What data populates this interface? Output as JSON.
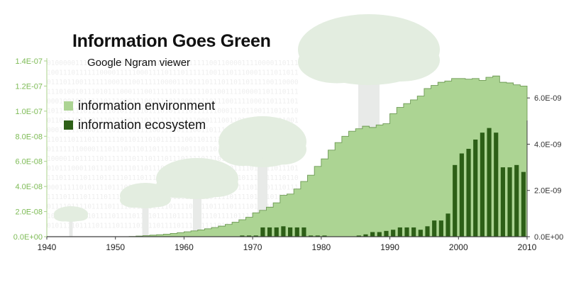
{
  "title": "Information Goes Green",
  "subtitle": "Google Ngram viewer",
  "colors": {
    "environment": "#acd493",
    "ecosystem": "#2d5f17",
    "left_axis_text": "#7dbb55",
    "tree_fill": "#e3ede0",
    "trunk_fill": "#e8eae8",
    "binary_text": "#eeeeee"
  },
  "background_text": {
    "binary_rows": [
      "01000001111100001101101100011101110111110011000011110000110111",
      "10011101111110000111110001111011101111110011101110001111011011",
      "01110110011111100011100111110000111011101110110110111100110000",
      "11101001011101011100011100111110111111101100111100001101110111",
      "00010010011111011100011100111101100011110111001111000110111101",
      "10111011101111110101111101110101111011111100011101100111010110",
      "01101110111011101110011101111111111110001110011011111101101001",
      "00011111000011110111101111001111011100110111011110000011110100",
      "11011101110111111101101110101111110011011110111110111011110111",
      "01111111000011101110111011011111100111011010011111100101110110",
      "10000110111110111111101110111011101111011101111110111001111011",
      "01011100011011101111101101110101111011101111101111011111011101",
      "11101111101110111110111011111011101111011101111101110111110110",
      "00011111010111101110111110111101111011101111011111011101110111",
      "11110111101111011111011110111101111011110111101111011110111101",
      "01111011110111101111011110111101111011110111101111011110111101",
      "10111101111011110111101111011110111101111011110111101111011110",
      "01011110111101111011110111101111011110111101111011110111101111"
    ]
  },
  "legend": [
    {
      "label": "information environment",
      "color": "#acd493"
    },
    {
      "label": "information ecosystem",
      "color": "#2d5f17"
    }
  ],
  "chart_data": {
    "type": "area",
    "title": "Information Goes Green",
    "subtitle": "Google Ngram viewer",
    "grid": false,
    "legend_position": "upper-left",
    "x": {
      "range": [
        1940,
        2010
      ],
      "ticks": [
        "1940",
        "1950",
        "1960",
        "1970",
        "1980",
        "1990",
        "2000",
        "2010"
      ],
      "tick_values": [
        1940,
        1950,
        1960,
        1970,
        1980,
        1990,
        2000,
        2010
      ]
    },
    "y_left": {
      "range": [
        0,
        1.4e-07
      ],
      "ticks": [
        "0.0E+00",
        "2.0E-08",
        "4.0E-08",
        "6.0E-08",
        "8.0E-08",
        "1.0E-07",
        "1.2E-07",
        "1.4E-07"
      ],
      "tick_values": [
        0,
        2e-08,
        4e-08,
        6e-08,
        8e-08,
        1e-07,
        1.2e-07,
        1.4e-07
      ]
    },
    "y_right": {
      "range": [
        0,
        7.6e-09
      ],
      "ticks": [
        "0.0E+00",
        "2.0E-09",
        "4.0E-09",
        "6.0E-09"
      ],
      "tick_values": [
        0,
        2e-09,
        4e-09,
        6e-09
      ]
    },
    "series": [
      {
        "name": "information environment",
        "type": "area-step",
        "axis": "left",
        "color": "#acd493",
        "x": [
          1952,
          1953,
          1954,
          1955,
          1956,
          1957,
          1958,
          1959,
          1960,
          1961,
          1962,
          1963,
          1964,
          1965,
          1966,
          1967,
          1968,
          1969,
          1970,
          1971,
          1972,
          1973,
          1974,
          1975,
          1976,
          1977,
          1978,
          1979,
          1980,
          1981,
          1982,
          1983,
          1984,
          1985,
          1986,
          1987,
          1988,
          1989,
          1990,
          1991,
          1992,
          1993,
          1994,
          1995,
          1996,
          1997,
          1998,
          1999,
          2000,
          2001,
          2002,
          2003,
          2004,
          2005,
          2006,
          2007,
          2008,
          2009
        ],
        "values": [
          2e-10,
          5e-10,
          8e-10,
          1.2e-09,
          1.6e-09,
          2e-09,
          2.6e-09,
          3.2e-09,
          3.9e-09,
          4.6e-09,
          5.4e-09,
          6.3e-09,
          7.3e-09,
          8.4e-09,
          9.8e-09,
          1.15e-08,
          1.35e-08,
          1.55e-08,
          1.9e-08,
          2.1e-08,
          2.35e-08,
          2.7e-08,
          3.3e-08,
          3.4e-08,
          3.8e-08,
          4.4e-08,
          4.9e-08,
          5.6e-08,
          6.2e-08,
          6.9e-08,
          7.5e-08,
          8e-08,
          8.4e-08,
          8.6e-08,
          8.8e-08,
          8.7e-08,
          8.9e-08,
          9e-08,
          9.8e-08,
          1.03e-07,
          1.06e-07,
          1.09e-07,
          1.12e-07,
          1.18e-07,
          1.205e-07,
          1.23e-07,
          1.24e-07,
          1.26e-07,
          1.26e-07,
          1.255e-07,
          1.26e-07,
          1.245e-07,
          1.27e-07,
          1.28e-07,
          1.23e-07,
          1.225e-07,
          1.21e-07,
          1.2e-07
        ]
      },
      {
        "name": "information ecosystem",
        "type": "bar",
        "axis": "right",
        "color": "#2d5f17",
        "x": [
          1968,
          1969,
          1970,
          1971,
          1972,
          1973,
          1974,
          1975,
          1976,
          1977,
          1978,
          1979,
          1980,
          1981,
          1982,
          1983,
          1984,
          1985,
          1986,
          1987,
          1988,
          1989,
          1990,
          1991,
          1992,
          1993,
          1994,
          1995,
          1996,
          1997,
          1998,
          1999,
          2000,
          2001,
          2002,
          2003,
          2004,
          2005,
          2006,
          2007,
          2008,
          2009
        ],
        "values": [
          5e-11,
          5e-11,
          5e-11,
          4e-10,
          4e-10,
          4e-10,
          4.5e-10,
          4e-10,
          4e-10,
          4e-10,
          5e-11,
          5e-11,
          5e-11,
          0.0,
          0.0,
          0.0,
          0.0,
          5e-11,
          1e-10,
          2e-10,
          2e-10,
          2.5e-10,
          3e-10,
          4e-10,
          4e-10,
          4e-10,
          3e-10,
          4.5e-10,
          7e-10,
          7e-10,
          1e-09,
          3.1e-09,
          3.6e-09,
          3.8e-09,
          4.2e-09,
          4.5e-09,
          4.7e-09,
          4.5e-09,
          3e-09,
          3e-09,
          3.1e-09,
          2.8e-09
        ]
      }
    ]
  }
}
